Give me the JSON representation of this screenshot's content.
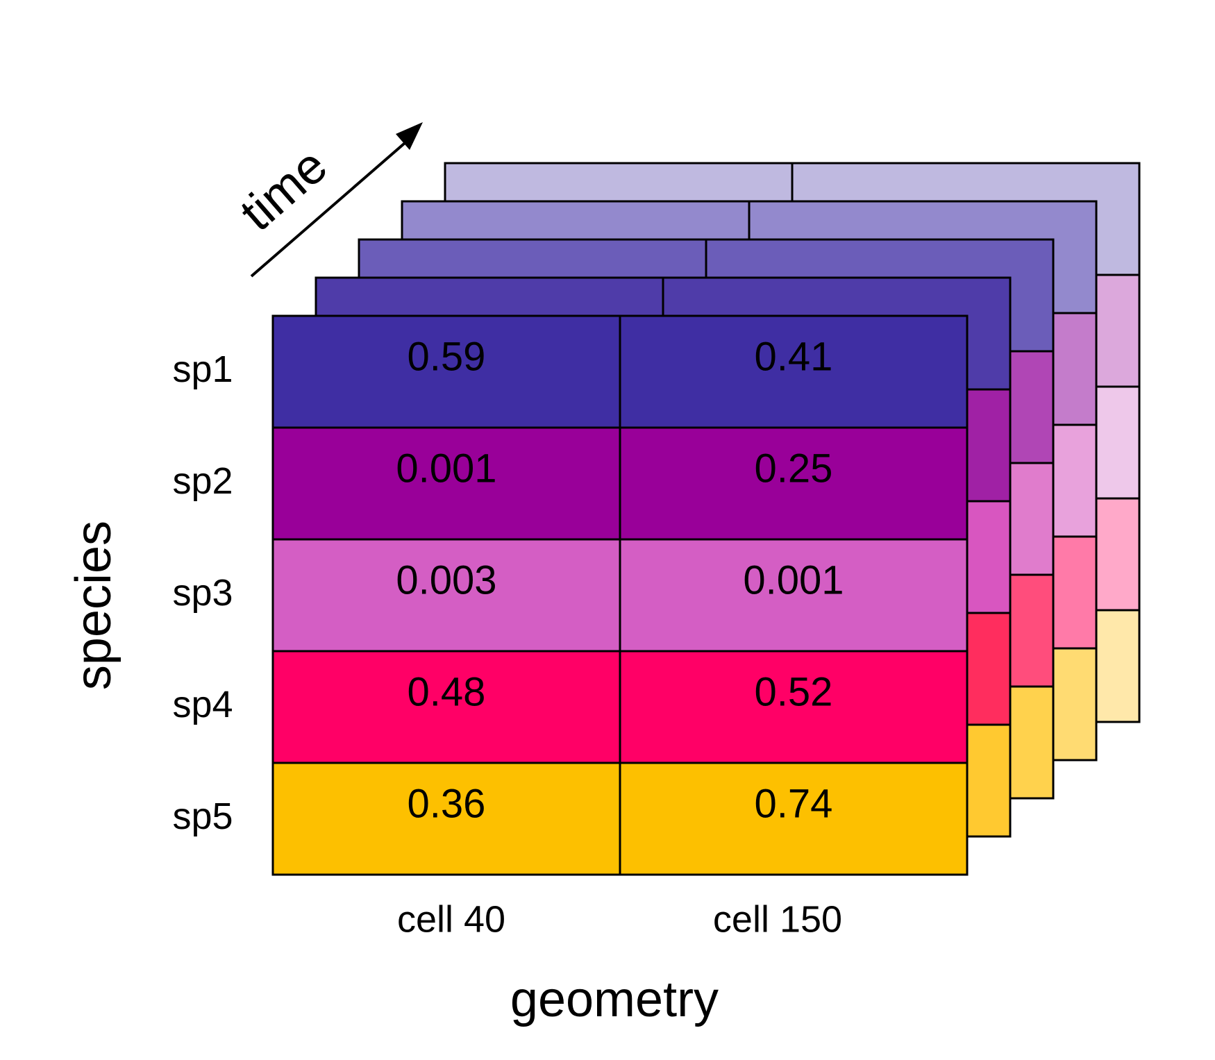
{
  "diagram": {
    "axes": {
      "time_label": "time",
      "species_label": "species",
      "geometry_label": "geometry"
    },
    "columns": [
      "cell 40",
      "cell 150"
    ],
    "rows": [
      {
        "label": "sp1",
        "color": "#3f2ea3",
        "values": [
          "0.59",
          "0.41"
        ]
      },
      {
        "label": "sp2",
        "color": "#990099",
        "values": [
          "0.001",
          "0.25"
        ]
      },
      {
        "label": "sp3",
        "color": "#d45ec4",
        "values": [
          "0.003",
          "0.001"
        ]
      },
      {
        "label": "sp4",
        "color": "#ff0066",
        "values": [
          "0.48",
          "0.52"
        ]
      },
      {
        "label": "sp5",
        "color": "#fdc000",
        "values": [
          "0.36",
          "0.74"
        ]
      }
    ],
    "back_layers": [
      {
        "colors": [
          "#bfb9e0",
          "#dca8dc",
          "#eec8ea",
          "#ffa9c9",
          "#ffe8aa"
        ]
      },
      {
        "colors": [
          "#9389cd",
          "#c47ccb",
          "#e8a2dc",
          "#ff7aa8",
          "#ffdb72"
        ]
      },
      {
        "colors": [
          "#6b5db9",
          "#b046b5",
          "#e07ccc",
          "#ff4d7c",
          "#ffd24d"
        ]
      },
      {
        "colors": [
          "#4f3ca9",
          "#a021a5",
          "#d856c0",
          "#ff2d5e",
          "#ffc930"
        ]
      }
    ]
  }
}
